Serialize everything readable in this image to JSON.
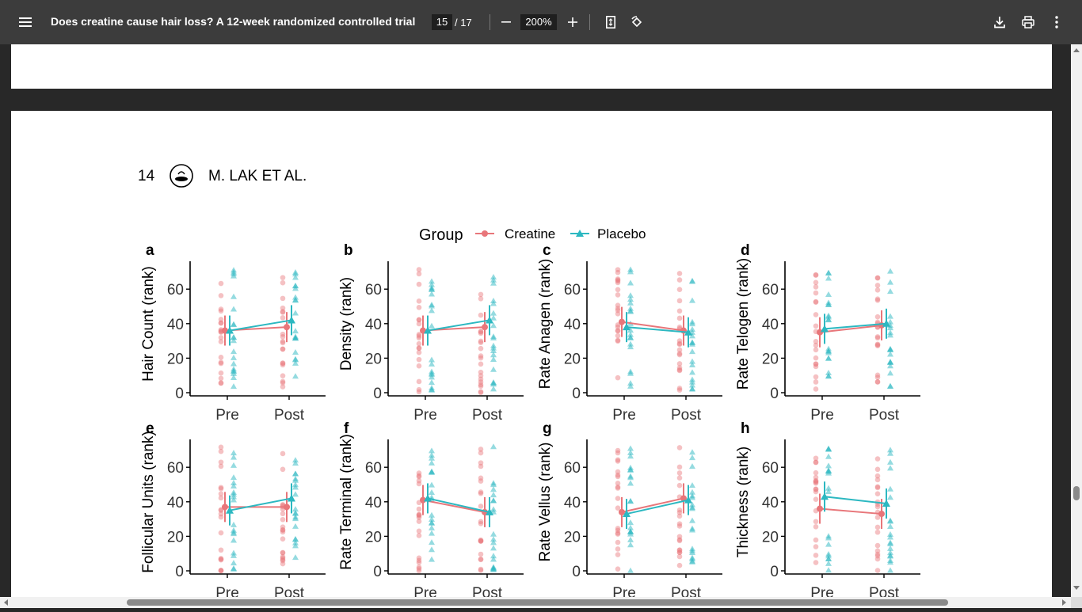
{
  "toolbar": {
    "title": "Does creatine cause hair loss? A 12-week randomized controlled trial",
    "page_current": "15",
    "page_total": "/ 17",
    "zoom": "200%",
    "icons": [
      "menu-icon",
      "zoom-out-icon",
      "zoom-in-icon",
      "fit-page-icon",
      "rotate-icon",
      "download-icon",
      "print-icon",
      "more-icon"
    ]
  },
  "page_header": {
    "page_number": "14",
    "authors": "M. LAK ET AL."
  },
  "figure": {
    "legend_title": "Group",
    "legend_items": [
      {
        "name": "Creatine",
        "color": "#e8767a"
      },
      {
        "name": "Placebo",
        "color": "#2cb8c1"
      }
    ],
    "x_labels": [
      "Pre",
      "Post"
    ],
    "y_ticks": [
      "0",
      "20",
      "40",
      "60"
    ],
    "panels": [
      {
        "letter": "a",
        "ylabel": "Hair Count (rank)",
        "creatine": [
          36,
          38
        ],
        "placebo": [
          36,
          42
        ]
      },
      {
        "letter": "b",
        "ylabel": "Density (rank)",
        "creatine": [
          36,
          38
        ],
        "placebo": [
          36,
          42
        ]
      },
      {
        "letter": "c",
        "ylabel": "Rate Anagen (rank)",
        "creatine": [
          41,
          36
        ],
        "placebo": [
          38,
          35
        ]
      },
      {
        "letter": "d",
        "ylabel": "Rate Telogen (rank)",
        "creatine": [
          35,
          39
        ],
        "placebo": [
          37,
          40
        ]
      },
      {
        "letter": "e",
        "ylabel": "Follicular Units (rank)",
        "creatine": [
          37,
          37
        ],
        "placebo": [
          35,
          42
        ]
      },
      {
        "letter": "f",
        "ylabel": "Rate Terminal (rank)",
        "creatine": [
          41,
          34
        ],
        "placebo": [
          42,
          34
        ]
      },
      {
        "letter": "g",
        "ylabel": "Rate Vellus (rank)",
        "creatine": [
          34,
          42
        ],
        "placebo": [
          33,
          41
        ]
      },
      {
        "letter": "h",
        "ylabel": "Thickness (rank)",
        "creatine": [
          36,
          33
        ],
        "placebo": [
          43,
          39
        ]
      }
    ]
  }
}
